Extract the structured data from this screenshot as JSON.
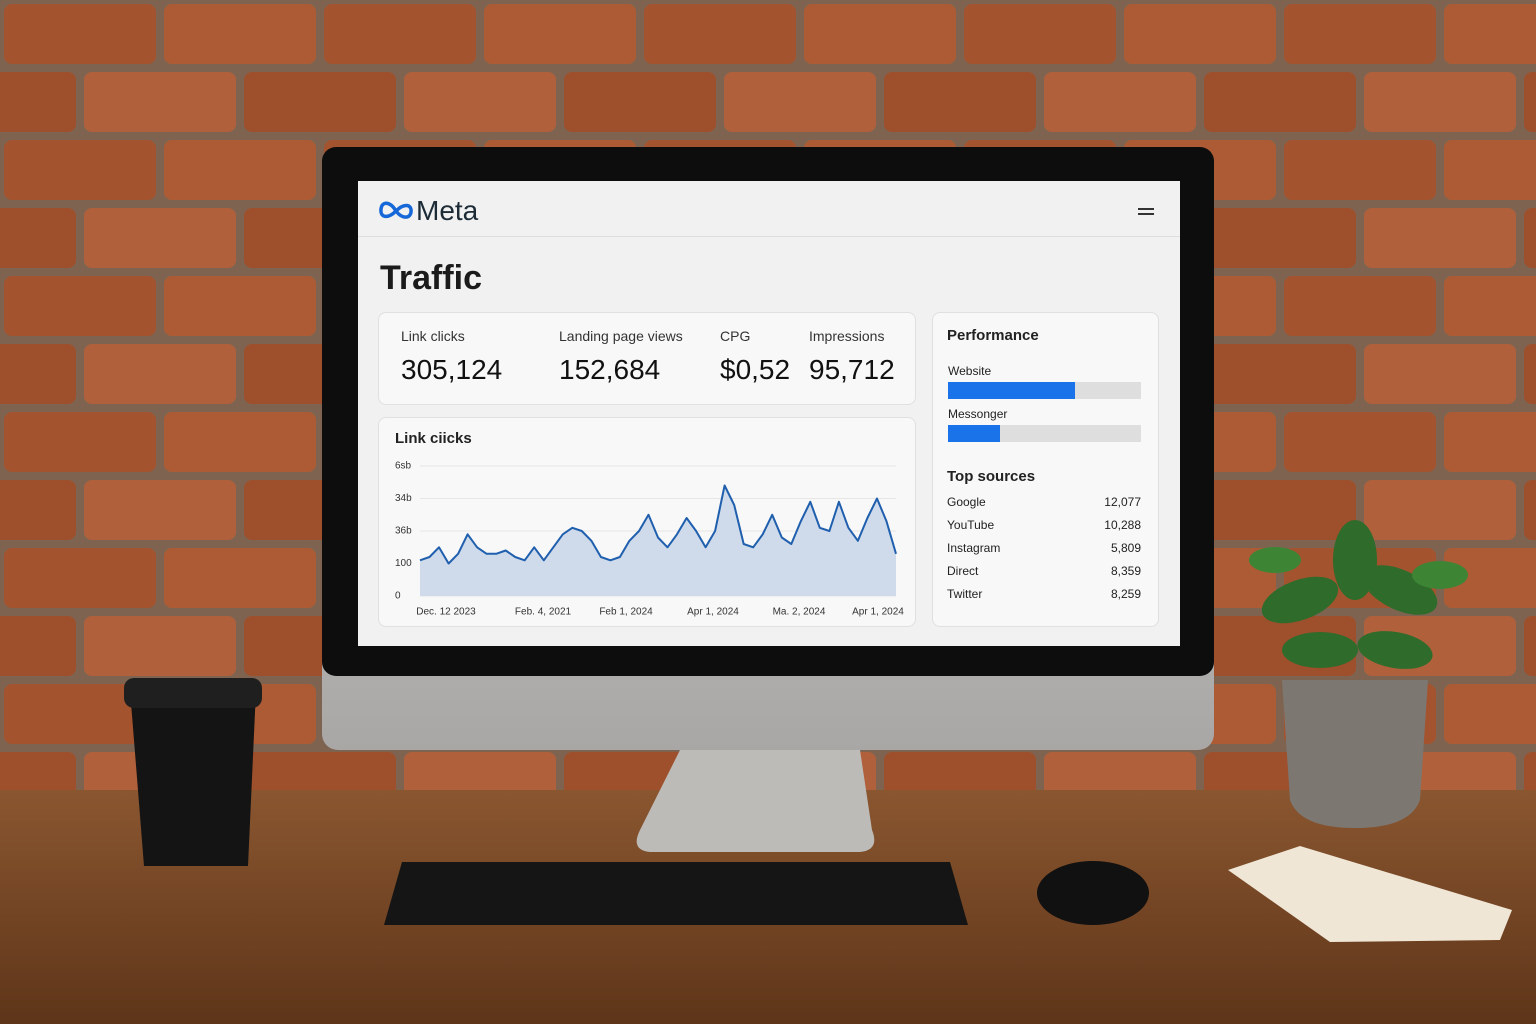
{
  "header": {
    "logo": "Meta"
  },
  "page_title": "Traffic",
  "kpis": [
    {
      "label": "Link clicks",
      "value": "305,124"
    },
    {
      "label": "Landing page views",
      "value": "152,684"
    },
    {
      "label": "CPG",
      "value": "$0,52"
    },
    {
      "label": "Impressions",
      "value": "95,712"
    }
  ],
  "chart": {
    "type": "line",
    "title": "Link ciicks",
    "color": "#1f5fae",
    "values": [
      1.1,
      1.2,
      1.5,
      1.0,
      1.3,
      1.9,
      1.5,
      1.3,
      1.3,
      1.4,
      1.2,
      1.1,
      1.5,
      1.1,
      1.5,
      1.9,
      2.1,
      2.0,
      1.7,
      1.2,
      1.1,
      1.2,
      1.7,
      2.0,
      2.5,
      1.8,
      1.5,
      1.9,
      2.4,
      2.0,
      1.5,
      2.0,
      3.4,
      2.8,
      1.6,
      1.5,
      1.9,
      2.5,
      1.8,
      1.6,
      2.3,
      2.9,
      2.1,
      2.0,
      2.9,
      2.1,
      1.7,
      2.4,
      3.0,
      2.3,
      1.3
    ],
    "ylim": [
      0,
      4
    ],
    "yticks": [
      0,
      {
        "value": 1,
        "label": "100"
      },
      {
        "value": 2,
        "label": "36b"
      },
      {
        "value": 3,
        "label": "34b"
      },
      {
        "value": 4,
        "label": "6sb"
      }
    ],
    "x_labels": [
      "Dec. 12 2023",
      "Feb. 4, 2021",
      "Feb 1, 2024",
      "Apr 1, 2024",
      "Ma. 2, 2024",
      "Apr 1, 2024"
    ]
  },
  "performance": {
    "title": "Performance",
    "color": "#1a73e8",
    "bars": [
      {
        "label": "Website",
        "value": 66
      },
      {
        "label": "Messonger",
        "value": 27
      }
    ]
  },
  "top_sources": {
    "title": "Top sources",
    "rows": [
      {
        "name": "Google",
        "value": "12,077"
      },
      {
        "name": "YouTube",
        "value": "10,288"
      },
      {
        "name": "Instagram",
        "value": "5,809"
      },
      {
        "name": "Direct",
        "value": "8,359"
      },
      {
        "name": "Twitter",
        "value": "8,259"
      }
    ]
  }
}
